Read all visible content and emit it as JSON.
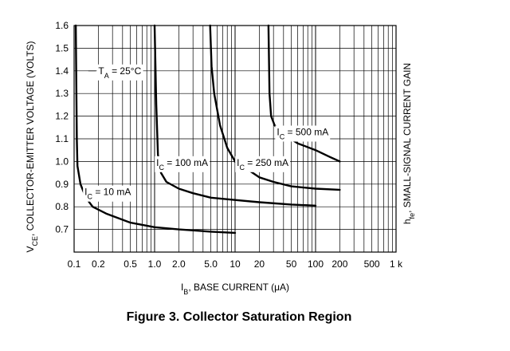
{
  "figure": {
    "caption": "Figure 3. Collector Saturation Region"
  },
  "chart_data": {
    "type": "line",
    "title": "",
    "xscale": "log",
    "xlim": [
      0.1,
      1000
    ],
    "ylim": [
      0.6,
      1.6
    ],
    "grid": true,
    "legend": "none",
    "x_ticks": [
      {
        "v": 0.1,
        "label": "0.1"
      },
      {
        "v": 0.2,
        "label": "0.2"
      },
      {
        "v": 0.5,
        "label": "0.5"
      },
      {
        "v": 1,
        "label": "1.0"
      },
      {
        "v": 2,
        "label": "2.0"
      },
      {
        "v": 5,
        "label": "5.0"
      },
      {
        "v": 10,
        "label": "10"
      },
      {
        "v": 20,
        "label": "20"
      },
      {
        "v": 50,
        "label": "50"
      },
      {
        "v": 100,
        "label": "100"
      },
      {
        "v": 200,
        "label": "200"
      },
      {
        "v": 500,
        "label": "500"
      },
      {
        "v": 1000,
        "label": "1 k"
      }
    ],
    "y_ticks": [
      {
        "v": 0.7,
        "label": "0.7"
      },
      {
        "v": 0.8,
        "label": "0.8"
      },
      {
        "v": 0.9,
        "label": "0.9"
      },
      {
        "v": 1.0,
        "label": "1.0"
      },
      {
        "v": 1.1,
        "label": "1.1"
      },
      {
        "v": 1.2,
        "label": "1.2"
      },
      {
        "v": 1.3,
        "label": "1.3"
      },
      {
        "v": 1.4,
        "label": "1.4"
      },
      {
        "v": 1.5,
        "label": "1.5"
      },
      {
        "v": 1.6,
        "label": "1.6"
      }
    ],
    "xlabel": {
      "main": "I",
      "sub": "B",
      "rest": ", BASE CURRENT (μA)"
    },
    "ylabel": {
      "main": "V",
      "sub": "CE",
      "rest": ", COLLECTOR-EMITTER VOLTAGE (VOLTS)"
    },
    "y2label": {
      "main": "h",
      "sub": "fe",
      "rest": ", SMALL-SIGNAL CURRENT GAIN"
    },
    "annotations": [
      {
        "name": "ta",
        "main": "T",
        "sub": "A",
        "rest": " = 25°C"
      }
    ],
    "series": [
      {
        "name": "I_C = 10 mA",
        "label": {
          "main": "I",
          "sub": "C",
          "rest": " = 10 mA"
        },
        "points": [
          [
            0.105,
            1.6
          ],
          [
            0.108,
            1.1
          ],
          [
            0.11,
            0.98
          ],
          [
            0.12,
            0.9
          ],
          [
            0.14,
            0.84
          ],
          [
            0.17,
            0.8
          ],
          [
            0.25,
            0.77
          ],
          [
            0.5,
            0.73
          ],
          [
            1,
            0.71
          ],
          [
            2,
            0.7
          ],
          [
            5,
            0.69
          ],
          [
            10,
            0.685
          ]
        ]
      },
      {
        "name": "I_C = 100 mA",
        "label": {
          "main": "I",
          "sub": "C",
          "rest": " = 100 mA"
        },
        "points": [
          [
            1.0,
            1.6
          ],
          [
            1.05,
            1.25
          ],
          [
            1.1,
            1.03
          ],
          [
            1.2,
            0.95
          ],
          [
            1.4,
            0.91
          ],
          [
            2,
            0.88
          ],
          [
            3,
            0.86
          ],
          [
            5,
            0.84
          ],
          [
            10,
            0.83
          ],
          [
            20,
            0.82
          ],
          [
            50,
            0.81
          ],
          [
            100,
            0.805
          ]
        ]
      },
      {
        "name": "I_C = 250 mA",
        "label": {
          "main": "I",
          "sub": "C",
          "rest": " = 250 mA"
        },
        "points": [
          [
            4.9,
            1.6
          ],
          [
            5.1,
            1.42
          ],
          [
            5.5,
            1.3
          ],
          [
            6.5,
            1.16
          ],
          [
            8,
            1.06
          ],
          [
            10,
            1.0
          ],
          [
            15,
            0.96
          ],
          [
            20,
            0.93
          ],
          [
            30,
            0.91
          ],
          [
            50,
            0.89
          ],
          [
            100,
            0.88
          ],
          [
            200,
            0.875
          ]
        ]
      },
      {
        "name": "I_C = 500 mA",
        "label": {
          "main": "I",
          "sub": "C",
          "rest": " = 500 mA"
        },
        "points": [
          [
            26,
            1.6
          ],
          [
            26.8,
            1.3
          ],
          [
            28,
            1.2
          ],
          [
            31,
            1.16
          ],
          [
            40,
            1.12
          ],
          [
            60,
            1.08
          ],
          [
            100,
            1.05
          ],
          [
            150,
            1.02
          ],
          [
            200,
            1.0
          ]
        ]
      }
    ]
  }
}
